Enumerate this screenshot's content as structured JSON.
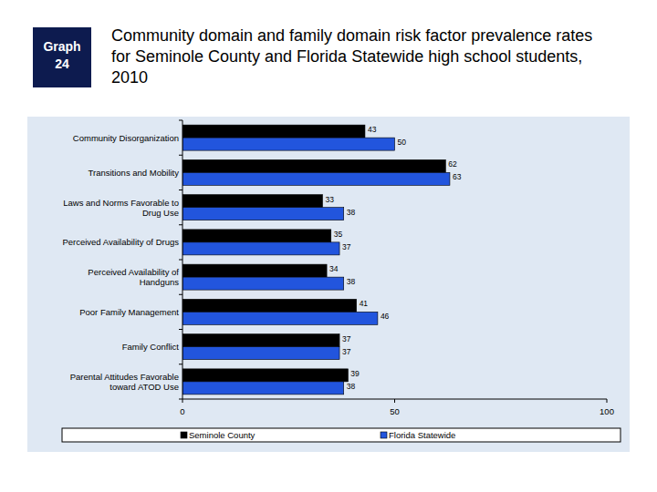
{
  "chart_data": {
    "type": "bar",
    "orientation": "horizontal",
    "title": "Community domain and family domain risk factor prevalence rates for Seminole County and Florida Statewide high school students, 2010",
    "annotations": [
      "Graph 24"
    ],
    "categories": [
      "Community Disorganization",
      "Transitions and Mobility",
      "Laws and Norms Favorable to Drug Use",
      "Perceived Availability of Drugs",
      "Perceived Availability of Handguns",
      "Poor Family Management",
      "Family Conflict",
      "Parental Attitudes Favorable toward ATOD Use"
    ],
    "series": [
      {
        "name": "Seminole County",
        "color": "#000000",
        "values": [
          43,
          62,
          33,
          35,
          34,
          41,
          37,
          39
        ]
      },
      {
        "name": "Florida Statewide",
        "color": "#2255dd",
        "values": [
          50,
          63,
          38,
          37,
          38,
          46,
          37,
          38
        ]
      }
    ],
    "xlim": [
      0,
      100
    ],
    "xticks": [
      0,
      50,
      100
    ],
    "data_labels": true,
    "legend": "bottom",
    "grid": false
  }
}
